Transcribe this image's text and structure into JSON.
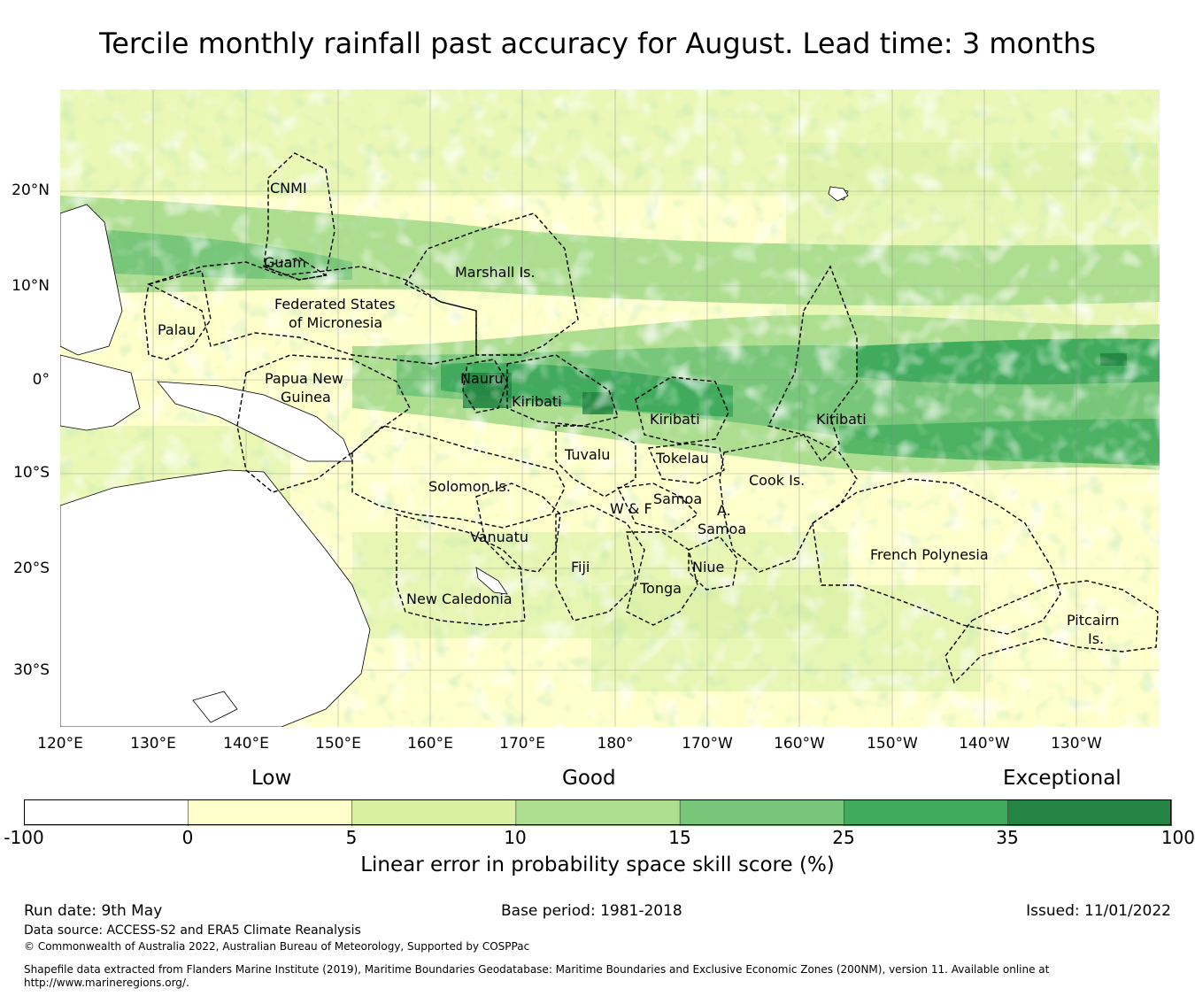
{
  "title": "Tercile monthly rainfall past accuracy for August. Lead time: 3 months",
  "map": {
    "lon_labels": [
      "120°E",
      "130°E",
      "140°E",
      "150°E",
      "160°E",
      "170°E",
      "180°",
      "170°W",
      "160°W",
      "150°W",
      "140°W",
      "130°W"
    ],
    "lat_labels": [
      "20°N",
      "10°N",
      "0°",
      "10°S",
      "20°S",
      "30°S"
    ],
    "regions": [
      "CNMI",
      "Guam",
      "Marshall Is.",
      "Federated States",
      "of Micronesia",
      "Palau",
      "Papua New",
      "Guinea",
      "Nauru",
      "Kiribati",
      "Kiribati",
      "Kiribati",
      "Tuvalu",
      "Tokelau",
      "Solomon Is.",
      "Cook Is.",
      "Samoa",
      "W & F",
      "A.",
      "Samoa",
      "Vanuatu",
      "Fiji",
      "Niue",
      "Tonga",
      "French Polynesia",
      "New Caledonia",
      "Pitcairn",
      "Is."
    ]
  },
  "colorbar": {
    "categories": [
      "Low",
      "Good",
      "Exceptional"
    ],
    "ticks": [
      "-100",
      "0",
      "5",
      "10",
      "15",
      "25",
      "35",
      "100"
    ],
    "colors": [
      "#ffffff",
      "#ffffcc",
      "#d9f0a3",
      "#addd8e",
      "#78c679",
      "#41ab5d",
      "#238443"
    ],
    "label": "Linear error in probability space skill score (%)"
  },
  "footer": {
    "run_date": "Run date: 9th May",
    "base_period": "Base period: 1981-2018",
    "issued": "Issued: 11/01/2022",
    "data_source": "Data source: ACCESS-S2 and ERA5 Climate Reanalysis",
    "copyright": "© Commonwealth of Australia 2022, Australian Bureau of Meteorology, Supported by COSPPac",
    "shapefile_1": "Shapefile data extracted from Flanders Marine Institute (2019), Maritime Boundaries Geodatabase: Maritime Boundaries and Exclusive Economic Zones (200NM), version 11. Available online at",
    "shapefile_2": "http://www.marineregions.org/."
  }
}
